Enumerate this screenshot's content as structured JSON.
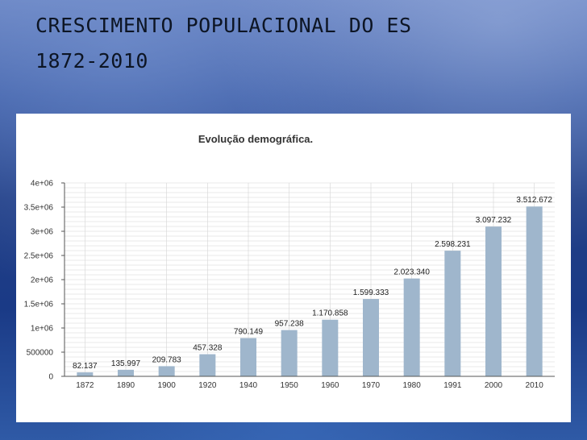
{
  "slide": {
    "title_line1": "CRESCIMENTO POPULACIONAL DO ES",
    "title_line2": "1872-2010"
  },
  "colors": {
    "bar": "#9fb6cc",
    "grid": "#d4d4d4",
    "axis": "#555555"
  },
  "chart_data": {
    "type": "bar",
    "title": "Evolução demográfica.",
    "xlabel": "",
    "ylabel": "",
    "categories": [
      "1872",
      "1890",
      "1900",
      "1920",
      "1940",
      "1950",
      "1960",
      "1970",
      "1980",
      "1991",
      "2000",
      "2010"
    ],
    "values": [
      82137,
      135997,
      209783,
      457328,
      790149,
      957238,
      1170858,
      1599333,
      2023340,
      2598231,
      3097232,
      3512672
    ],
    "value_labels": [
      "82.137",
      "135.997",
      "209.783",
      "457.328",
      "790.149",
      "957.238",
      "1.170.858",
      "1.599.333",
      "2.023.340",
      "2.598.231",
      "3.097.232",
      "3.512.672"
    ],
    "ylim": [
      0,
      4000000
    ],
    "y_ticks": [
      0,
      500000,
      1000000,
      1500000,
      2000000,
      2500000,
      3000000,
      3500000,
      4000000
    ],
    "y_tick_labels": [
      "0",
      "500000",
      "1e+06",
      "1.5e+06",
      "2e+06",
      "2.5e+06",
      "3e+06",
      "3.5e+06",
      "4e+06"
    ],
    "grid": true,
    "legend": "none"
  }
}
